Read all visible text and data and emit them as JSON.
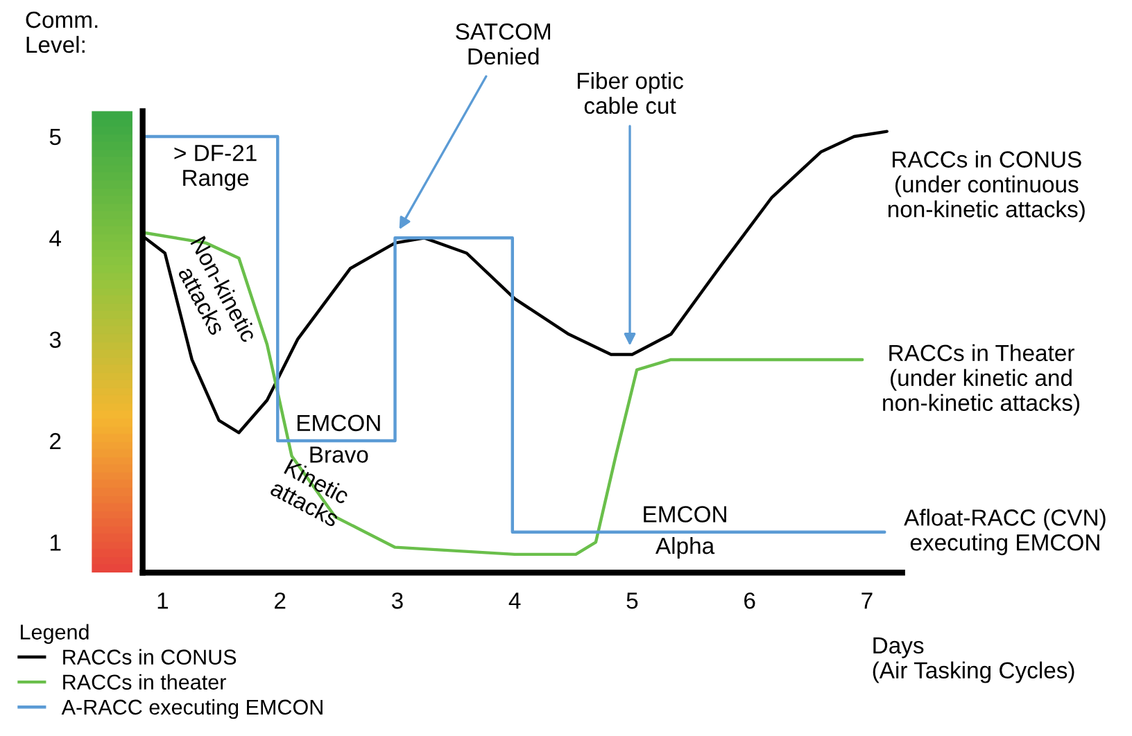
{
  "chart_data": {
    "type": "line",
    "ylabel": "Comm. Level:",
    "xlabel": "Days\n(Air Tasking Cycles)",
    "xlim": [
      0.83,
      7.3
    ],
    "xticks": [
      1,
      2,
      3,
      4,
      5,
      6,
      7
    ],
    "ylim": [
      0.7,
      5.25
    ],
    "yticks": [
      1,
      2,
      3,
      4,
      5
    ],
    "grid": false,
    "legend": "bottom left",
    "legend_title": "Legend",
    "series": [
      {
        "name": "RACCs in CONUS",
        "color": "#000000",
        "x": [
          0.85,
          1.02,
          1.25,
          1.48,
          1.65,
          1.89,
          2.15,
          2.6,
          2.98,
          3.23,
          3.59,
          4.0,
          4.46,
          4.82,
          5.0,
          5.33,
          5.77,
          6.19,
          6.61,
          6.89,
          7.17
        ],
        "values": [
          4.0,
          3.85,
          2.8,
          2.2,
          2.08,
          2.4,
          3.0,
          3.7,
          3.95,
          4.0,
          3.85,
          3.4,
          3.05,
          2.85,
          2.85,
          3.05,
          3.75,
          4.4,
          4.85,
          5.0,
          5.05
        ]
      },
      {
        "name": "RACCs in theater",
        "color": "#6abf4b",
        "x": [
          0.85,
          1.37,
          1.65,
          1.89,
          2.1,
          2.47,
          2.98,
          4.0,
          4.52,
          4.69,
          4.86,
          5.04,
          5.33,
          6.06,
          6.96
        ],
        "values": [
          4.05,
          3.95,
          3.8,
          2.95,
          1.85,
          1.25,
          0.95,
          0.88,
          0.88,
          1.0,
          1.85,
          2.7,
          2.8,
          2.8,
          2.8
        ]
      },
      {
        "name": "A-RACC executing EMCON",
        "type": "step",
        "color": "#5b9bd5",
        "x": [
          0.85,
          1.98,
          2.98,
          3.98,
          7.15
        ],
        "values": [
          5.0,
          2.0,
          4.0,
          1.1,
          1.1
        ]
      }
    ],
    "annotations": [
      {
        "text": "> DF-21\nRange",
        "x": 1.45,
        "y": 5.0
      },
      {
        "text": "EMCON\nBravo",
        "x": 2.5,
        "y": 2.0
      },
      {
        "text": "EMCON\nAlpha",
        "x": 5.45,
        "y": 1.1
      },
      "Non-kinetic\nattacks",
      "Kinetic\nattacks",
      {
        "text": "SATCOM\nDenied",
        "x": 3.0,
        "y": 4.05
      },
      {
        "text": "Fiber optic\ncable cut",
        "x": 4.98,
        "y": 2.9
      },
      {
        "text": "RACCs in CONUS\n(under continuous\nnon-kinetic attacks)",
        "x": 7.17,
        "y": 5.05
      },
      {
        "text": "RACCs in Theater\n(under kinetic and\nnon-kinetic attacks)",
        "x": 6.96,
        "y": 2.8
      },
      {
        "text": "Afloat-RACC (CVN)\nexecuting EMCON",
        "x": 7.15,
        "y": 1.1
      }
    ]
  }
}
